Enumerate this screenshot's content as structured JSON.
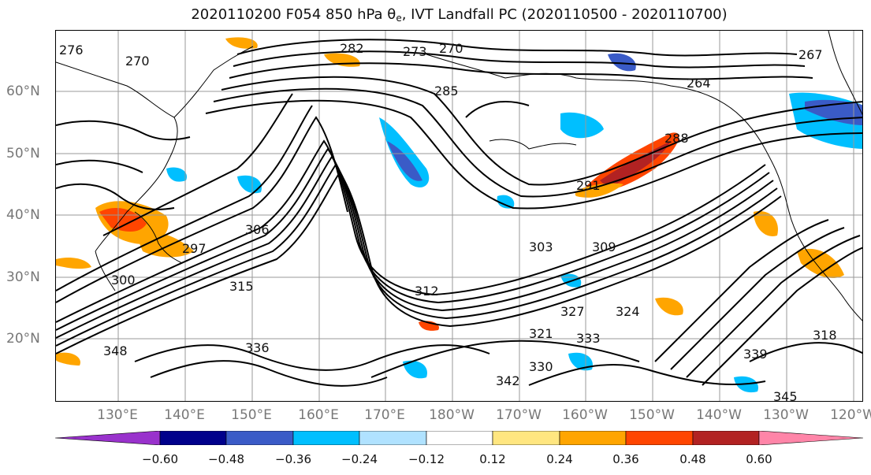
{
  "title": {
    "before": "2020110200 F054 850 hPa θ",
    "sub": "e",
    "after": ", IVT Landfall PC (2020110500 - 2020110700)"
  },
  "lat_labels": [
    "60°N",
    "50°N",
    "40°N",
    "30°N",
    "20°N"
  ],
  "lon_labels": [
    "130°E",
    "140°E",
    "150°E",
    "160°E",
    "170°E",
    "180°W",
    "170°W",
    "160°W",
    "150°W",
    "140°W",
    "130°W",
    "120°W"
  ],
  "colorbar": {
    "ticks": [
      "−0.60",
      "−0.48",
      "−0.36",
      "−0.24",
      "−0.12",
      "0.12",
      "0.24",
      "0.36",
      "0.48",
      "0.60"
    ],
    "colors": [
      "#9932CC",
      "#00008B",
      "#3A5BC7",
      "#00BFFF",
      "#B0E2FF",
      "#FFFFFF",
      "#FFE680",
      "#FFA500",
      "#FF4500",
      "#B22222",
      "#FF85A8"
    ]
  },
  "contour_labels": [
    "276",
    "270",
    "282",
    "273",
    "270",
    "267",
    "264",
    "285",
    "288",
    "291",
    "297",
    "300",
    "303",
    "306",
    "309",
    "312",
    "315",
    "318",
    "321",
    "324",
    "327",
    "330",
    "333",
    "336",
    "339",
    "342",
    "345",
    "348"
  ]
}
